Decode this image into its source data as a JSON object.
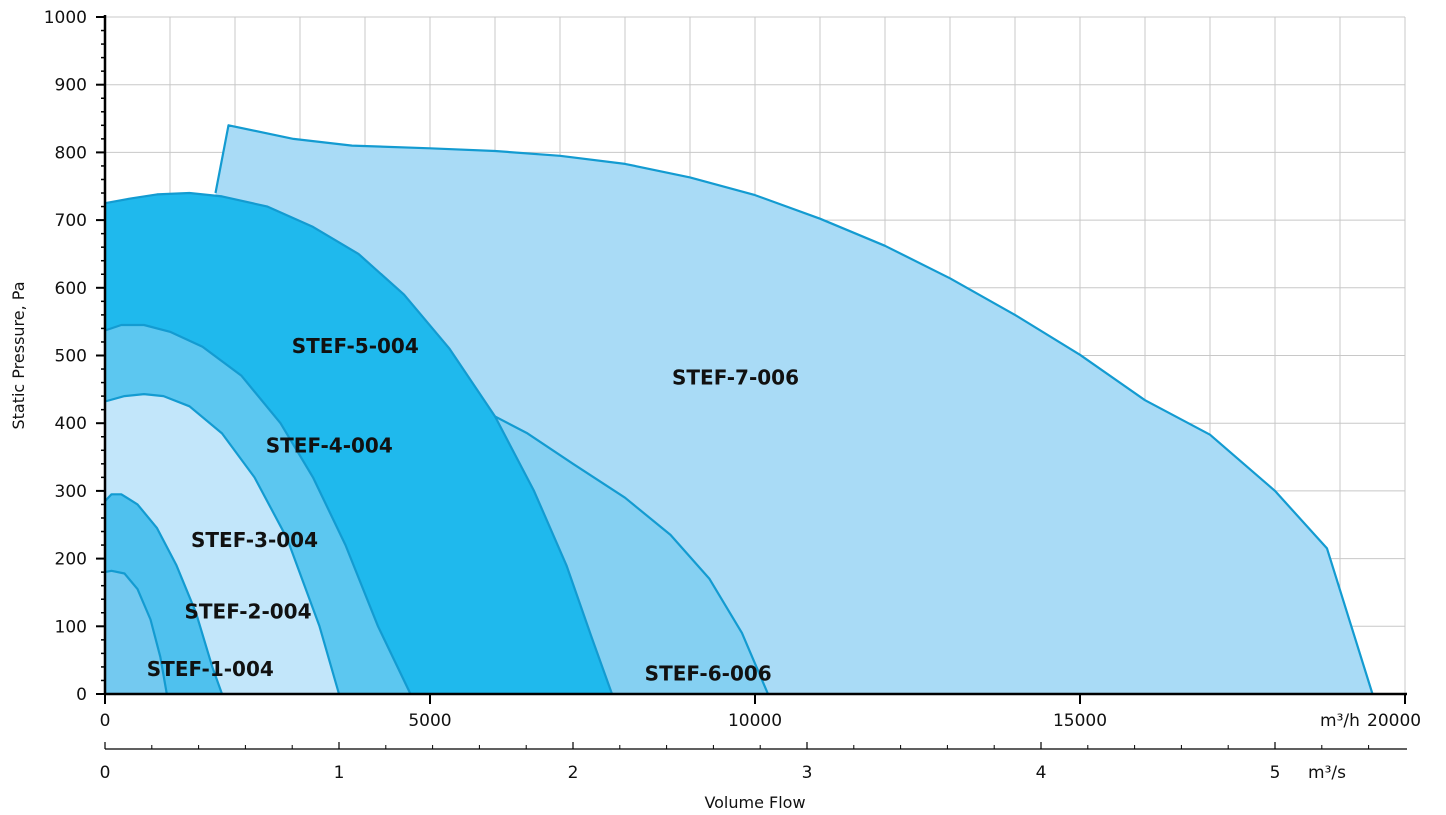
{
  "chart_data": {
    "type": "area",
    "xlabel": "Volume Flow",
    "ylabel": "Static Pressure, Pa",
    "x_unit_primary": "m³/h",
    "x_unit_secondary": "m³/s",
    "xlim": [
      0,
      20000
    ],
    "ylim": [
      0,
      1000
    ],
    "x_ticks": [
      "0",
      "5000",
      "10000",
      "15000",
      "20000"
    ],
    "x2_ticks": [
      "0",
      "1",
      "2",
      "3",
      "4",
      "5"
    ],
    "y_ticks": [
      "0",
      "100",
      "200",
      "300",
      "400",
      "500",
      "600",
      "700",
      "800",
      "900",
      "1000"
    ],
    "grid": true,
    "series": [
      {
        "name": "STEF-7-006",
        "color": "#A9DBF6",
        "x": [
          1700,
          1900,
          2900,
          3800,
          5000,
          6000,
          7000,
          8000,
          9000,
          10000,
          11000,
          12000,
          13000,
          14000,
          15000,
          16000,
          17000,
          18000,
          18800,
          19500
        ],
        "y": [
          740,
          840,
          820,
          810,
          806,
          802,
          795,
          783,
          763,
          737,
          702,
          662,
          614,
          560,
          501,
          434,
          383,
          300,
          215,
          0
        ]
      },
      {
        "name": "STEF-6-006",
        "color": "#85D0F2",
        "x": [
          5800,
          6500,
          7200,
          8000,
          8700,
          9300,
          9800,
          10200
        ],
        "y": [
          420,
          385,
          340,
          290,
          235,
          170,
          90,
          0
        ]
      },
      {
        "name": "STEF-5-004",
        "color": "#1FB9ED",
        "x": [
          0,
          400,
          800,
          1300,
          1800,
          2500,
          3200,
          3900,
          4600,
          5300,
          6000,
          6600,
          7100,
          7500,
          7800
        ],
        "y": [
          725,
          732,
          738,
          740,
          735,
          720,
          690,
          650,
          590,
          510,
          410,
          300,
          190,
          80,
          0
        ]
      },
      {
        "name": "STEF-4-004",
        "color": "#5CC7F0",
        "x": [
          0,
          250,
          600,
          1000,
          1500,
          2100,
          2700,
          3200,
          3700,
          4200,
          4700
        ],
        "y": [
          537,
          545,
          545,
          535,
          513,
          470,
          400,
          320,
          220,
          100,
          0
        ]
      },
      {
        "name": "STEF-3-004",
        "color": "#C2E6FA",
        "x": [
          0,
          300,
          600,
          900,
          1300,
          1800,
          2300,
          2800,
          3300,
          3600
        ],
        "y": [
          432,
          440,
          443,
          440,
          425,
          385,
          320,
          230,
          100,
          0
        ]
      },
      {
        "name": "STEF-2-004",
        "color": "#4FC1EE",
        "x": [
          0,
          100,
          250,
          500,
          800,
          1100,
          1400,
          1650,
          1800
        ],
        "y": [
          285,
          295,
          295,
          280,
          245,
          190,
          120,
          40,
          0
        ]
      },
      {
        "name": "STEF-1-004",
        "color": "#73C9F0",
        "x": [
          0,
          100,
          300,
          500,
          700,
          850,
          950
        ],
        "y": [
          180,
          182,
          178,
          155,
          110,
          55,
          0
        ]
      }
    ],
    "annotations": [
      {
        "text": "STEF-7-006",
        "x": 9700,
        "y": 465
      },
      {
        "text": "STEF-5-004",
        "x": 3850,
        "y": 512
      },
      {
        "text": "STEF-4-004",
        "x": 3450,
        "y": 365
      },
      {
        "text": "STEF-3-004",
        "x": 2300,
        "y": 225
      },
      {
        "text": "STEF-2-004",
        "x": 2200,
        "y": 120
      },
      {
        "text": "STEF-1-004",
        "x": 1620,
        "y": 35
      },
      {
        "text": "STEF-6-006",
        "x": 9280,
        "y": 28
      }
    ]
  }
}
